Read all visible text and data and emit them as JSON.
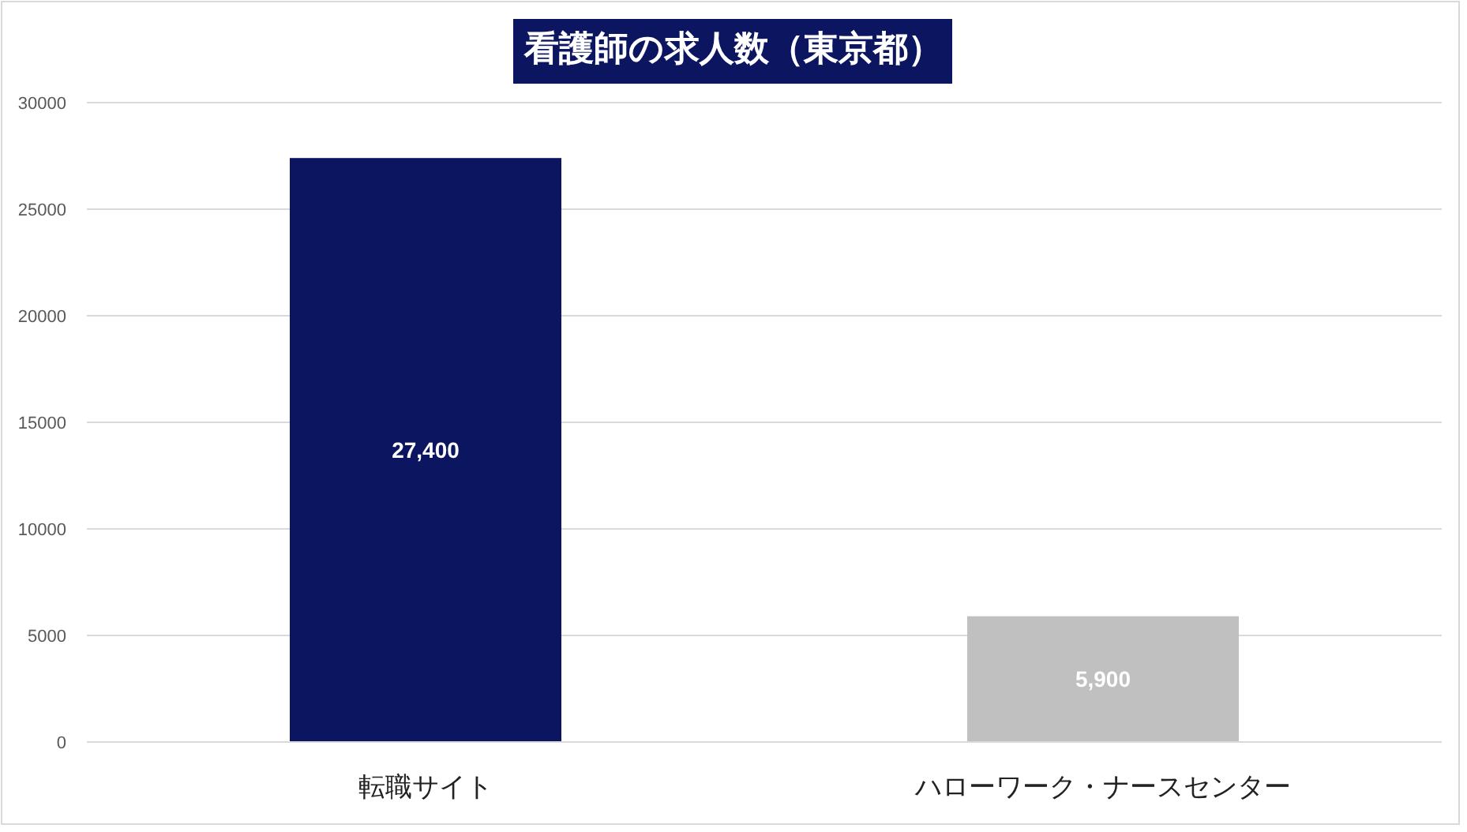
{
  "chart_data": {
    "type": "bar",
    "title": "看護師の求人数（東京都）",
    "categories": [
      "転職サイト",
      "ハローワーク・ナースセンター"
    ],
    "values": [
      27400,
      5900
    ],
    "colors": [
      "#0b1560",
      "#c0c0c0"
    ],
    "value_labels": [
      "27,400",
      "5,900"
    ],
    "ylim": [
      0,
      30000
    ],
    "yticks": [
      0,
      5000,
      10000,
      15000,
      20000,
      25000,
      30000
    ],
    "grid": "y"
  }
}
